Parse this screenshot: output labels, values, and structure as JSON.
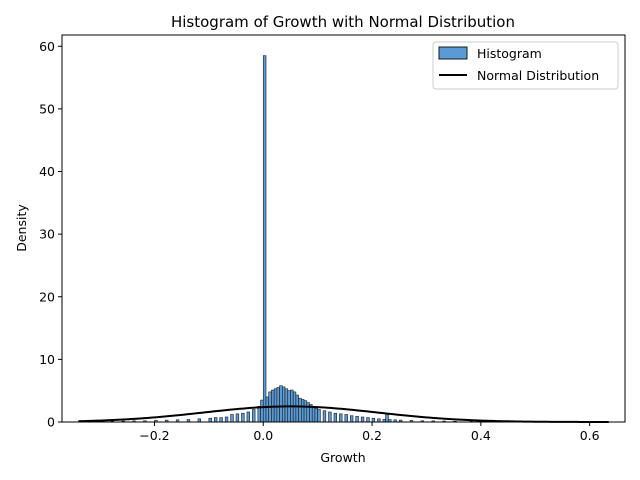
{
  "chart_data": {
    "type": "bar",
    "title": "Histogram of Growth with Normal Distribution",
    "xlabel": "Growth",
    "ylabel": "Density",
    "xlim": [
      -0.37,
      0.665
    ],
    "ylim": [
      0,
      61.8
    ],
    "xticks": [
      -0.2,
      0.0,
      0.2,
      0.4,
      0.6
    ],
    "xtick_labels": [
      "−0.2",
      "0.0",
      "0.2",
      "0.4",
      "0.6"
    ],
    "yticks": [
      0,
      10,
      20,
      30,
      40,
      50,
      60
    ],
    "ytick_labels": [
      "0",
      "10",
      "20",
      "30",
      "40",
      "50",
      "60"
    ],
    "grid": false,
    "legend_placement": "top-right",
    "legend": [
      "Histogram",
      "Normal Distribution"
    ],
    "colors": {
      "bar_fill": "#5b9bd5",
      "bar_edge": "#1a1a1a",
      "line": "#000000"
    },
    "histogram": {
      "name": "Histogram",
      "bins": [
        [
          -0.34,
          0.05
        ],
        [
          -0.32,
          0.08
        ],
        [
          -0.3,
          0.1
        ],
        [
          -0.28,
          0.12
        ],
        [
          -0.26,
          0.15
        ],
        [
          -0.24,
          0.18
        ],
        [
          -0.22,
          0.2
        ],
        [
          -0.2,
          0.25
        ],
        [
          -0.18,
          0.3
        ],
        [
          -0.16,
          0.35
        ],
        [
          -0.14,
          0.4
        ],
        [
          -0.12,
          0.5
        ],
        [
          -0.1,
          0.6
        ],
        [
          -0.09,
          0.7
        ],
        [
          -0.08,
          0.7
        ],
        [
          -0.07,
          0.8
        ],
        [
          -0.06,
          1.2
        ],
        [
          -0.05,
          1.3
        ],
        [
          -0.04,
          1.4
        ],
        [
          -0.03,
          1.6
        ],
        [
          -0.02,
          2.0
        ],
        [
          -0.01,
          2.5
        ],
        [
          -0.005,
          3.5
        ],
        [
          0.0,
          58.5
        ],
        [
          0.005,
          4.0
        ],
        [
          0.01,
          4.8
        ],
        [
          0.015,
          5.1
        ],
        [
          0.02,
          5.3
        ],
        [
          0.025,
          5.5
        ],
        [
          0.03,
          5.8
        ],
        [
          0.035,
          5.6
        ],
        [
          0.04,
          5.3
        ],
        [
          0.045,
          5.0
        ],
        [
          0.05,
          5.1
        ],
        [
          0.055,
          4.8
        ],
        [
          0.06,
          4.3
        ],
        [
          0.065,
          3.8
        ],
        [
          0.07,
          3.6
        ],
        [
          0.075,
          3.4
        ],
        [
          0.08,
          3.1
        ],
        [
          0.085,
          2.8
        ],
        [
          0.09,
          2.5
        ],
        [
          0.095,
          2.2
        ],
        [
          0.1,
          2.0
        ],
        [
          0.11,
          1.8
        ],
        [
          0.12,
          1.6
        ],
        [
          0.13,
          1.4
        ],
        [
          0.14,
          1.3
        ],
        [
          0.15,
          1.2
        ],
        [
          0.16,
          1.0
        ],
        [
          0.17,
          0.9
        ],
        [
          0.18,
          0.8
        ],
        [
          0.19,
          0.7
        ],
        [
          0.2,
          0.6
        ],
        [
          0.21,
          0.5
        ],
        [
          0.22,
          0.4
        ],
        [
          0.225,
          1.2
        ],
        [
          0.23,
          0.4
        ],
        [
          0.24,
          0.35
        ],
        [
          0.25,
          0.3
        ],
        [
          0.27,
          0.25
        ],
        [
          0.29,
          0.2
        ],
        [
          0.31,
          0.18
        ],
        [
          0.33,
          0.15
        ],
        [
          0.35,
          0.12
        ],
        [
          0.38,
          0.1
        ],
        [
          0.41,
          0.08
        ],
        [
          0.44,
          0.06
        ],
        [
          0.48,
          0.05
        ],
        [
          0.52,
          0.04
        ],
        [
          0.56,
          0.03
        ],
        [
          0.6,
          0.02
        ]
      ]
    },
    "normal": {
      "name": "Normal Distribution",
      "mean": 0.05,
      "std": 0.16,
      "x_range": [
        -0.34,
        0.635
      ]
    }
  }
}
